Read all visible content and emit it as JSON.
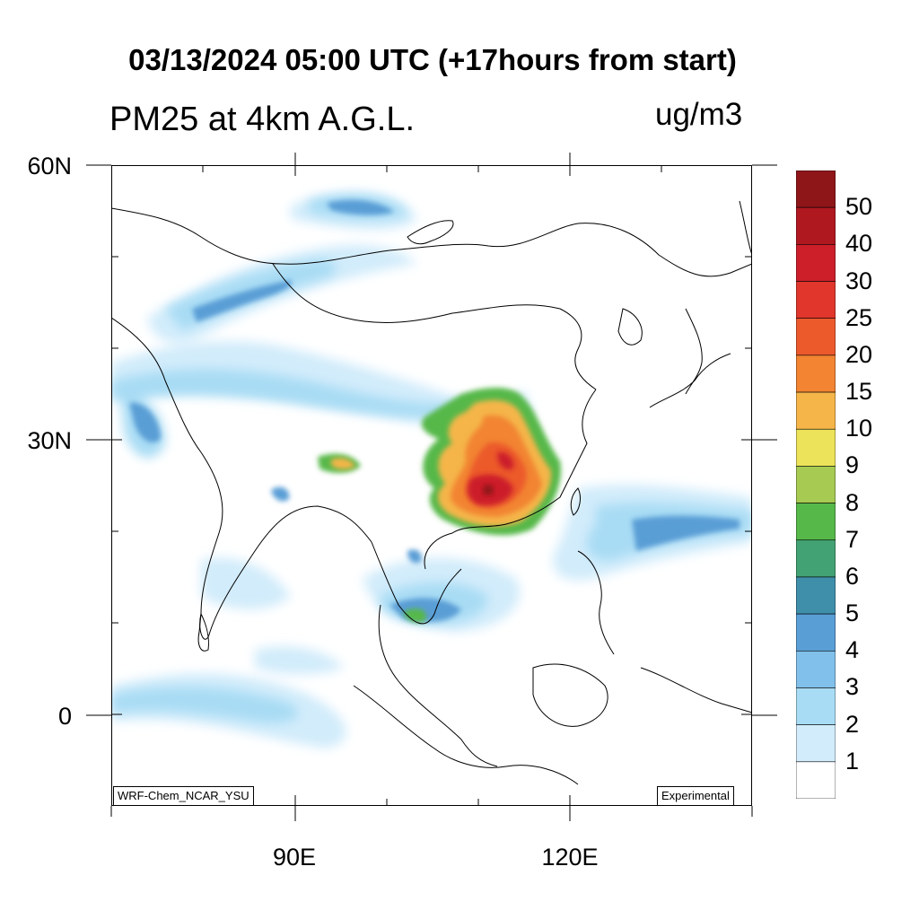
{
  "title": "03/13/2024 05:00 UTC (+17hours from start)",
  "variable": "PM25 at 4km A.G.L.",
  "units": "ug/m3",
  "map": {
    "lon_range": [
      70,
      140
    ],
    "lat_range": [
      -10,
      60
    ],
    "lat_labels": [
      "60N",
      "30N",
      "0"
    ],
    "lon_labels": [
      "90E",
      "120E"
    ],
    "model_label": "WRF-Chem_NCAR_YSU",
    "status_label": "Experimental"
  },
  "legend": {
    "labels": [
      "50",
      "40",
      "30",
      "25",
      "20",
      "15",
      "10",
      "9",
      "8",
      "7",
      "6",
      "5",
      "4",
      "3",
      "2",
      "1"
    ],
    "colors": [
      "#8e1619",
      "#b0181f",
      "#cc1f2a",
      "#e0362c",
      "#ec5a2c",
      "#f28432",
      "#f5b549",
      "#ede35a",
      "#a7ca52",
      "#57b84a",
      "#43a273",
      "#3f8fab",
      "#5a9ed6",
      "#80c0ea",
      "#a8dcf4",
      "#d2ecfb",
      "#ffffff"
    ]
  },
  "chart_data": {
    "type": "heatmap",
    "title": "03/13/2024 05:00 UTC (+17hours from start)",
    "field": "PM25 at 4km A.G.L.",
    "units": "ug/m3",
    "color_levels": [
      1,
      2,
      3,
      4,
      5,
      6,
      7,
      8,
      9,
      10,
      15,
      20,
      25,
      30,
      40,
      50
    ],
    "xlim": [
      70,
      140
    ],
    "ylim": [
      -10,
      60
    ],
    "x_ticks": [
      "90E",
      "120E"
    ],
    "y_ticks": [
      "60N",
      "30N",
      "0"
    ]
  }
}
